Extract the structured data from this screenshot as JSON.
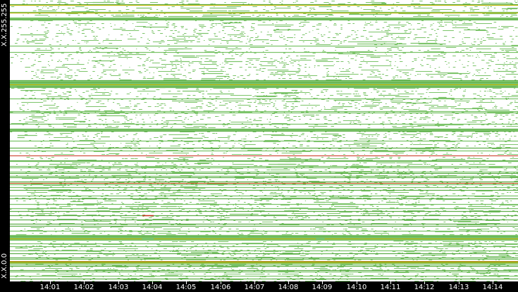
{
  "view": {
    "y_axis": {
      "top_label": "X.X.255.255",
      "bottom_label": "X.X.0.0"
    },
    "x_axis": {
      "ticks": [
        "14:01",
        "14:02",
        "14:03",
        "14:04",
        "14:05",
        "14:06",
        "14:07",
        "14:08",
        "14:09",
        "14:10",
        "14:11",
        "14:12",
        "14:13",
        "14:14"
      ]
    },
    "colors": {
      "background": "#000000",
      "plot_background": "#ffffff",
      "activity_green": "#7cc46a",
      "activity_dense_green": "#5fae4a",
      "activity_yellow": "#c8b400",
      "activity_orange": "#d08a00",
      "activity_red": "#c8321e",
      "axis_text": "#ffffff"
    }
  }
}
